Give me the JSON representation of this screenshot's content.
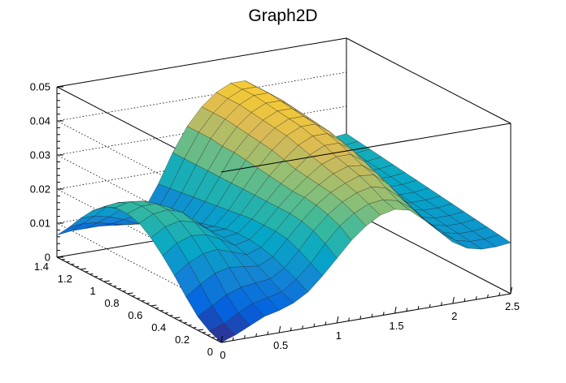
{
  "title": "Graph2D",
  "chart_data": {
    "type": "surface",
    "title": "Graph2D",
    "xlabel": "",
    "ylabel": "",
    "zlabel": "",
    "xlim": [
      0,
      2.5
    ],
    "ylim": [
      0,
      1.4
    ],
    "zlim": [
      0,
      0.05
    ],
    "x_ticks": [
      "0",
      "0.5",
      "1",
      "1.5",
      "2",
      "2.5"
    ],
    "y_ticks": [
      "0",
      "0.2",
      "0.4",
      "0.6",
      "0.8",
      "1",
      "1.2",
      "1.4"
    ],
    "z_ticks": [
      "0",
      "0.01",
      "0.02",
      "0.03",
      "0.04",
      "0.05"
    ],
    "grid": true,
    "palette": "kBird",
    "palette_colors": [
      "#352a87",
      "#0363e1",
      "#1485d4",
      "#06a7c6",
      "#38b99e",
      "#92bf73",
      "#d9ba56",
      "#fcce2e",
      "#f9fb0e"
    ],
    "grid_x": [
      0,
      0.125,
      0.25,
      0.375,
      0.5,
      0.625,
      0.75,
      0.875,
      1,
      1.125,
      1.25,
      1.375,
      1.5,
      1.625,
      1.75,
      1.875,
      2,
      2.125,
      2.25,
      2.375,
      2.5
    ],
    "grid_y": [
      0,
      0.1,
      0.2,
      0.3,
      0.4,
      0.5,
      0.6,
      0.7,
      0.8,
      0.9,
      1,
      1.1,
      1.2,
      1.3,
      1.4
    ],
    "z_values": [
      [
        0,
        0.0015,
        0.0035,
        0.0055,
        0.0065,
        0.008,
        0.0105,
        0.0145,
        0.019,
        0.0235,
        0.027,
        0.0295,
        0.0305,
        0.0295,
        0.026,
        0.022,
        0.018,
        0.0155,
        0.0145,
        0.0145,
        0.015
      ],
      [
        0.0015,
        0.003,
        0.0055,
        0.0075,
        0.0085,
        0.0095,
        0.0125,
        0.0165,
        0.0215,
        0.026,
        0.029,
        0.031,
        0.0315,
        0.0305,
        0.0275,
        0.023,
        0.019,
        0.016,
        0.015,
        0.015,
        0.0155
      ],
      [
        0.004,
        0.0065,
        0.009,
        0.0105,
        0.011,
        0.0115,
        0.014,
        0.0185,
        0.0235,
        0.0275,
        0.0305,
        0.0325,
        0.0335,
        0.0325,
        0.029,
        0.0245,
        0.02,
        0.0165,
        0.0155,
        0.0155,
        0.016
      ],
      [
        0.008,
        0.011,
        0.0135,
        0.0145,
        0.014,
        0.0135,
        0.0155,
        0.02,
        0.0245,
        0.0285,
        0.0315,
        0.0335,
        0.035,
        0.0345,
        0.031,
        0.026,
        0.0205,
        0.017,
        0.016,
        0.016,
        0.0165
      ],
      [
        0.0125,
        0.0155,
        0.0175,
        0.018,
        0.0165,
        0.015,
        0.0165,
        0.0205,
        0.025,
        0.029,
        0.032,
        0.0345,
        0.036,
        0.0355,
        0.0325,
        0.027,
        0.021,
        0.0175,
        0.0165,
        0.0165,
        0.017
      ],
      [
        0.0165,
        0.0195,
        0.021,
        0.0205,
        0.0185,
        0.016,
        0.017,
        0.0205,
        0.025,
        0.029,
        0.0325,
        0.0355,
        0.037,
        0.037,
        0.034,
        0.0285,
        0.022,
        0.018,
        0.017,
        0.017,
        0.0175
      ],
      [
        0.02,
        0.0225,
        0.0235,
        0.0225,
        0.0195,
        0.0165,
        0.017,
        0.0205,
        0.025,
        0.0295,
        0.033,
        0.0365,
        0.0385,
        0.0385,
        0.0355,
        0.0295,
        0.0225,
        0.0185,
        0.0175,
        0.0175,
        0.018
      ],
      [
        0.0225,
        0.0245,
        0.025,
        0.0235,
        0.02,
        0.0165,
        0.0165,
        0.02,
        0.025,
        0.03,
        0.034,
        0.0375,
        0.0395,
        0.0395,
        0.0365,
        0.0305,
        0.023,
        0.019,
        0.018,
        0.018,
        0.0185
      ],
      [
        0.0235,
        0.025,
        0.025,
        0.023,
        0.019,
        0.0155,
        0.0155,
        0.0195,
        0.025,
        0.0305,
        0.035,
        0.0385,
        0.0405,
        0.0405,
        0.0375,
        0.031,
        0.0235,
        0.0195,
        0.0185,
        0.0185,
        0.019
      ],
      [
        0.0235,
        0.0245,
        0.024,
        0.021,
        0.017,
        0.014,
        0.0145,
        0.019,
        0.025,
        0.031,
        0.0355,
        0.039,
        0.041,
        0.041,
        0.038,
        0.0315,
        0.024,
        0.02,
        0.019,
        0.019,
        0.0195
      ],
      [
        0.022,
        0.0225,
        0.0215,
        0.0185,
        0.015,
        0.0125,
        0.0135,
        0.0185,
        0.025,
        0.0315,
        0.036,
        0.0395,
        0.0415,
        0.0415,
        0.0385,
        0.032,
        0.0245,
        0.0205,
        0.0195,
        0.0195,
        0.02
      ],
      [
        0.019,
        0.0195,
        0.018,
        0.0155,
        0.0125,
        0.011,
        0.0125,
        0.018,
        0.025,
        0.0315,
        0.0365,
        0.04,
        0.042,
        0.042,
        0.039,
        0.0325,
        0.025,
        0.021,
        0.02,
        0.02,
        0.0205
      ],
      [
        0.015,
        0.015,
        0.014,
        0.0125,
        0.0105,
        0.0095,
        0.0115,
        0.0175,
        0.025,
        0.032,
        0.037,
        0.0405,
        0.0425,
        0.0425,
        0.0395,
        0.033,
        0.0255,
        0.0215,
        0.0205,
        0.0205,
        0.021
      ],
      [
        0.0105,
        0.011,
        0.0105,
        0.0095,
        0.0085,
        0.008,
        0.0105,
        0.017,
        0.025,
        0.032,
        0.037,
        0.0405,
        0.0425,
        0.0425,
        0.0395,
        0.0335,
        0.026,
        0.022,
        0.021,
        0.021,
        0.0215
      ],
      [
        0.0065,
        0.007,
        0.007,
        0.007,
        0.0065,
        0.0065,
        0.0095,
        0.0165,
        0.025,
        0.032,
        0.037,
        0.0405,
        0.0425,
        0.0425,
        0.0395,
        0.0335,
        0.0265,
        0.0225,
        0.0215,
        0.0215,
        0.022
      ]
    ]
  }
}
